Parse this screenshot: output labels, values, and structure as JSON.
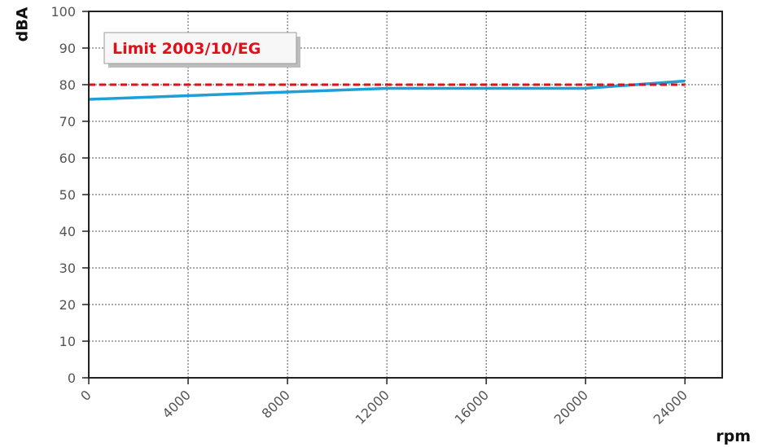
{
  "chart_data": {
    "type": "line",
    "xlabel": "rpm",
    "ylabel": "dBA",
    "xlim": [
      0,
      25500
    ],
    "ylim": [
      0,
      100
    ],
    "x_ticks": [
      0,
      4000,
      8000,
      12000,
      16000,
      20000,
      24000
    ],
    "y_ticks": [
      0,
      10,
      20,
      30,
      40,
      50,
      60,
      70,
      80,
      90,
      100
    ],
    "grid": true,
    "legend_position": "top-left",
    "series": [
      {
        "name": "",
        "color": "#1e9fd8",
        "style": "solid",
        "points": [
          [
            0,
            76
          ],
          [
            4000,
            77
          ],
          [
            8000,
            78
          ],
          [
            12000,
            79
          ],
          [
            16000,
            79
          ],
          [
            20000,
            79
          ],
          [
            24000,
            81
          ]
        ]
      },
      {
        "name": "Limit 2003/10/EG",
        "color": "#e0101a",
        "style": "dashed",
        "points": [
          [
            0,
            80
          ],
          [
            24000,
            80
          ]
        ]
      }
    ]
  }
}
